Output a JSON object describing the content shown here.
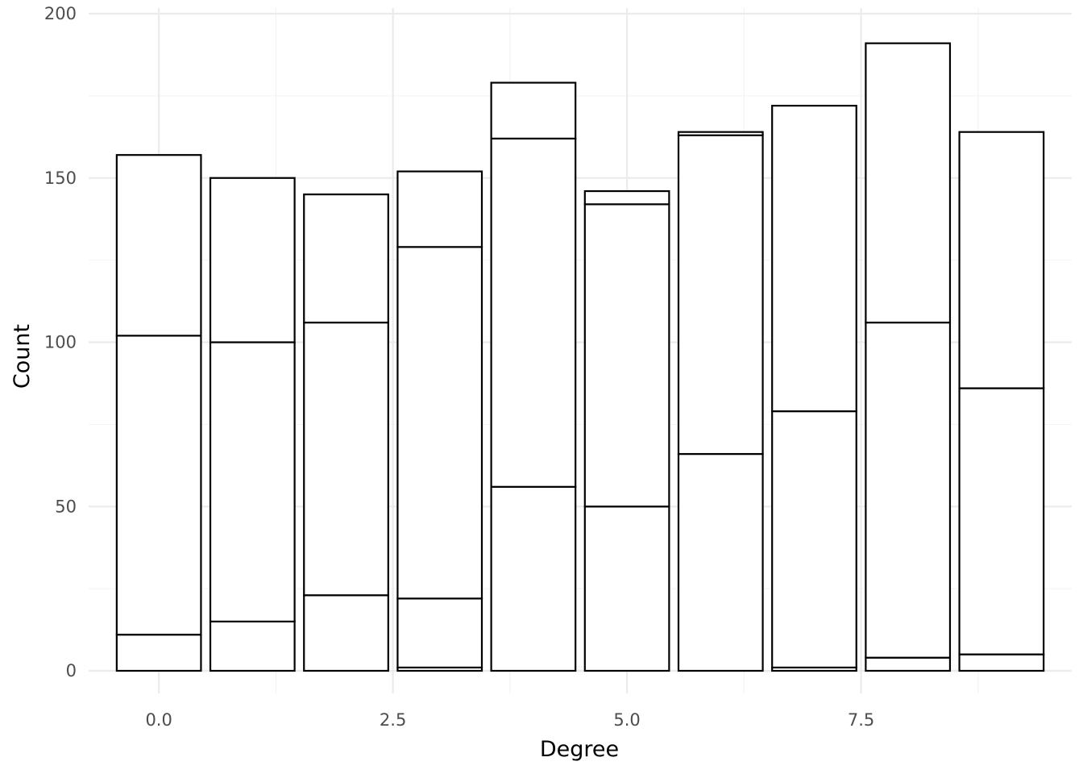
{
  "chart_data": {
    "type": "bar",
    "stacked": true,
    "title": "",
    "xlabel": "Degree",
    "ylabel": "Count",
    "x": [
      0,
      1,
      2,
      3,
      4,
      5,
      6,
      7,
      8,
      9
    ],
    "xlim": [
      -0.75,
      9.75
    ],
    "ylim": [
      0,
      200
    ],
    "x_ticks": [
      0,
      2.5,
      5,
      7.5
    ],
    "x_tick_labels": [
      "0.0",
      "2.5",
      "5.0",
      "7.5"
    ],
    "x_minor_ticks": [
      1.25,
      3.75,
      6.25,
      8.75
    ],
    "y_ticks": [
      0,
      50,
      100,
      150,
      200
    ],
    "y_tick_labels": [
      "0",
      "50",
      "100",
      "150",
      "200"
    ],
    "y_minor_ticks": [
      25,
      75,
      125,
      175
    ],
    "bar_fill": "#ffffff",
    "bar_outline": "#000000",
    "grid": true,
    "legend": "none",
    "series": [
      {
        "values": [
          11,
          15,
          23,
          1,
          0,
          0,
          0,
          1,
          4,
          5
        ]
      },
      {
        "values": [
          91,
          85,
          83,
          21,
          56,
          50,
          66,
          78,
          102,
          81
        ]
      },
      {
        "values": [
          55,
          50,
          39,
          107,
          106,
          92,
          97,
          93,
          85,
          78
        ]
      },
      {
        "values": [
          0,
          0,
          0,
          23,
          17,
          4,
          1,
          0,
          0,
          0
        ]
      }
    ]
  }
}
